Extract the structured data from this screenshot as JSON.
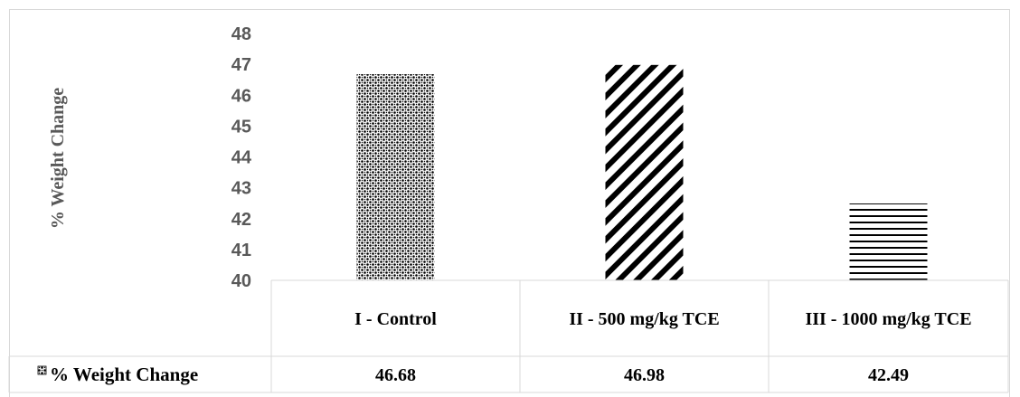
{
  "chart_data": {
    "type": "bar",
    "title": "",
    "ylabel": "% Weight Change",
    "xlabel": "",
    "ylim": [
      40,
      48
    ],
    "yticks": [
      40,
      41,
      42,
      43,
      44,
      45,
      46,
      47,
      48
    ],
    "categories": [
      "I - Control",
      "II - 500 mg/kg TCE",
      "III - 1000 mg/kg TCE"
    ],
    "series": [
      {
        "name": "% Weight Change",
        "values": [
          46.68,
          46.98,
          42.49
        ]
      }
    ],
    "value_labels": [
      "46.68",
      "46.98",
      "42.49"
    ],
    "bar_patterns": [
      "dots",
      "diagonal-stripes",
      "horizontal-stripes"
    ],
    "grid": false,
    "legend": "data-table",
    "colors": {
      "bar": "#000000",
      "axis_text": "#595959",
      "table_border": "#d9d9d9"
    }
  }
}
